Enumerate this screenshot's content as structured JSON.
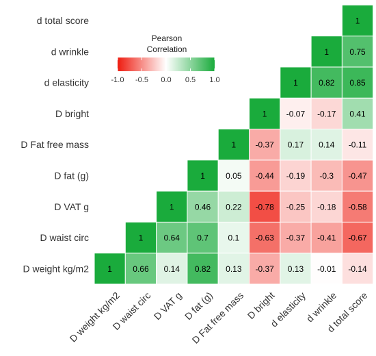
{
  "chart_data": {
    "type": "heatmap",
    "variables": [
      "D weight kg/m2",
      "D waist circ",
      "D VAT g",
      "D fat (g)",
      "D Fat free mass",
      "D bright",
      "d elasticity",
      "d wrinkle",
      "d total score"
    ],
    "x_tick_labels": [
      "D weight kg/m2",
      "D waist circ",
      "D VAT g",
      "D fat (g)",
      "D Fat free mass",
      "D bright",
      "d elasticity",
      "d wrinkle",
      "d total score"
    ],
    "y_tick_labels": [
      "d total score",
      "d wrinkle",
      "d elasticity",
      "D bright",
      "D Fat free mass",
      "D fat (g)",
      "D VAT g",
      "D waist circ",
      "D weight kg/m2"
    ],
    "cells": [
      {
        "x": "D weight kg/m2",
        "y": "D weight kg/m2",
        "value": 1,
        "label": "1"
      },
      {
        "x": "D waist circ",
        "y": "D weight kg/m2",
        "value": 0.66,
        "label": "0.66"
      },
      {
        "x": "D VAT g",
        "y": "D weight kg/m2",
        "value": 0.14,
        "label": "0.14"
      },
      {
        "x": "D fat (g)",
        "y": "D weight kg/m2",
        "value": 0.82,
        "label": "0.82"
      },
      {
        "x": "D Fat free mass",
        "y": "D weight kg/m2",
        "value": 0.13,
        "label": "0.13"
      },
      {
        "x": "D bright",
        "y": "D weight kg/m2",
        "value": -0.37,
        "label": "-0.37"
      },
      {
        "x": "d elasticity",
        "y": "D weight kg/m2",
        "value": 0.13,
        "label": "0.13"
      },
      {
        "x": "d wrinkle",
        "y": "D weight kg/m2",
        "value": -0.01,
        "label": "-0.01"
      },
      {
        "x": "d total score",
        "y": "D weight kg/m2",
        "value": -0.14,
        "label": "-0.14"
      },
      {
        "x": "D waist circ",
        "y": "D waist circ",
        "value": 1,
        "label": "1"
      },
      {
        "x": "D VAT g",
        "y": "D waist circ",
        "value": 0.64,
        "label": "0.64"
      },
      {
        "x": "D fat (g)",
        "y": "D waist circ",
        "value": 0.7,
        "label": "0.7"
      },
      {
        "x": "D Fat free mass",
        "y": "D waist circ",
        "value": 0.1,
        "label": "0.1"
      },
      {
        "x": "D bright",
        "y": "D waist circ",
        "value": -0.63,
        "label": "-0.63"
      },
      {
        "x": "d elasticity",
        "y": "D waist circ",
        "value": -0.37,
        "label": "-0.37"
      },
      {
        "x": "d wrinkle",
        "y": "D waist circ",
        "value": -0.41,
        "label": "-0.41"
      },
      {
        "x": "d total score",
        "y": "D waist circ",
        "value": -0.67,
        "label": "-0.67"
      },
      {
        "x": "D VAT g",
        "y": "D VAT g",
        "value": 1,
        "label": "1"
      },
      {
        "x": "D fat (g)",
        "y": "D VAT g",
        "value": 0.46,
        "label": "0.46"
      },
      {
        "x": "D Fat free mass",
        "y": "D VAT g",
        "value": 0.22,
        "label": "0.22"
      },
      {
        "x": "D bright",
        "y": "D VAT g",
        "value": -0.78,
        "label": "-0.78"
      },
      {
        "x": "d elasticity",
        "y": "D VAT g",
        "value": -0.25,
        "label": "-0.25"
      },
      {
        "x": "d wrinkle",
        "y": "D VAT g",
        "value": -0.18,
        "label": "-0.18"
      },
      {
        "x": "d total score",
        "y": "D VAT g",
        "value": -0.58,
        "label": "-0.58"
      },
      {
        "x": "D fat (g)",
        "y": "D fat (g)",
        "value": 1,
        "label": "1"
      },
      {
        "x": "D Fat free mass",
        "y": "D fat (g)",
        "value": 0.05,
        "label": "0.05"
      },
      {
        "x": "D bright",
        "y": "D fat (g)",
        "value": -0.44,
        "label": "-0.44"
      },
      {
        "x": "d elasticity",
        "y": "D fat (g)",
        "value": -0.19,
        "label": "-0.19"
      },
      {
        "x": "d wrinkle",
        "y": "D fat (g)",
        "value": -0.3,
        "label": "-0.3"
      },
      {
        "x": "d total score",
        "y": "D fat (g)",
        "value": -0.47,
        "label": "-0.47"
      },
      {
        "x": "D Fat free mass",
        "y": "D Fat free mass",
        "value": 1,
        "label": "1"
      },
      {
        "x": "D bright",
        "y": "D Fat free mass",
        "value": -0.37,
        "label": "-0.37"
      },
      {
        "x": "d elasticity",
        "y": "D Fat free mass",
        "value": 0.17,
        "label": "0.17"
      },
      {
        "x": "d wrinkle",
        "y": "D Fat free mass",
        "value": 0.14,
        "label": "0.14"
      },
      {
        "x": "d total score",
        "y": "D Fat free mass",
        "value": -0.11,
        "label": "-0.11"
      },
      {
        "x": "D bright",
        "y": "D bright",
        "value": 1,
        "label": "1"
      },
      {
        "x": "d elasticity",
        "y": "D bright",
        "value": -0.07,
        "label": "-0.07"
      },
      {
        "x": "d wrinkle",
        "y": "D bright",
        "value": -0.17,
        "label": "-0.17"
      },
      {
        "x": "d total score",
        "y": "D bright",
        "value": 0.41,
        "label": "0.41"
      },
      {
        "x": "d elasticity",
        "y": "d elasticity",
        "value": 1,
        "label": "1"
      },
      {
        "x": "d wrinkle",
        "y": "d elasticity",
        "value": 0.82,
        "label": "0.82"
      },
      {
        "x": "d total score",
        "y": "d elasticity",
        "value": 0.85,
        "label": "0.85"
      },
      {
        "x": "d wrinkle",
        "y": "d wrinkle",
        "value": 1,
        "label": "1"
      },
      {
        "x": "d total score",
        "y": "d wrinkle",
        "value": 0.75,
        "label": "0.75"
      },
      {
        "x": "d total score",
        "y": "d total score",
        "value": 1,
        "label": "1"
      }
    ],
    "legend": {
      "title_line1": "Pearson",
      "title_line2": "Correlation",
      "tick_labels": [
        "-1.0",
        "-0.5",
        "0.0",
        "0.5",
        "1.0"
      ],
      "tick_values": [
        -1,
        -0.5,
        0,
        0.5,
        1
      ],
      "placement": "top-left"
    },
    "color_scale": {
      "low": "#ee1c10",
      "mid": "#ffffff",
      "high": "#1aab3c"
    },
    "value_range": [
      -1,
      1
    ]
  }
}
